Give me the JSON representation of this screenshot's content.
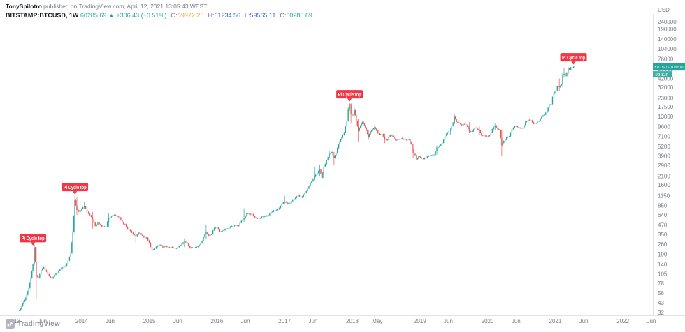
{
  "header": {
    "byline": {
      "author": "TonySpilotro",
      "rest": " published on TradingView.com, April 12, 2021 13:05:43 WEST"
    },
    "symbol": {
      "name": "BITSTAMP:BTCUSD, 1W",
      "last": "60285.69",
      "change": "▲ +306.43 (+0.51%)",
      "o_label": "O:",
      "o": "59972.26",
      "h_label": "H:",
      "h": "61234.56",
      "l_label": "L:",
      "l": "59565.11",
      "c_label": "C:",
      "c": "60285.69"
    }
  },
  "price_axis": {
    "currency": "USD",
    "ticks": [
      "240000",
      "190000",
      "140000",
      "104000",
      "76000",
      "56000",
      "42000",
      "32000",
      "23000",
      "17500",
      "13000",
      "9600",
      "7100",
      "5200",
      "3900",
      "2900",
      "2100",
      "1600",
      "1150",
      "850",
      "640",
      "470",
      "350",
      "260",
      "190",
      "140",
      "105",
      "78",
      "58",
      "43",
      "32"
    ],
    "price_tag": {
      "label": "BTCUSD S·",
      "value": "60285.69"
    },
    "countdown": "9d 12h"
  },
  "time_axis": {
    "ticks": [
      {
        "t": 2013,
        "label": "2013"
      },
      {
        "t": 2013.42,
        "label": "Jun"
      },
      {
        "t": 2014,
        "label": "2014"
      },
      {
        "t": 2014.42,
        "label": "Jun"
      },
      {
        "t": 2015,
        "label": "2015"
      },
      {
        "t": 2015.42,
        "label": "Jun"
      },
      {
        "t": 2016,
        "label": "2016"
      },
      {
        "t": 2016.42,
        "label": "Jun"
      },
      {
        "t": 2017,
        "label": "2017"
      },
      {
        "t": 2017.42,
        "label": "Jun"
      },
      {
        "t": 2018,
        "label": "2018"
      },
      {
        "t": 2018.37,
        "label": "May"
      },
      {
        "t": 2019,
        "label": "2019"
      },
      {
        "t": 2019.42,
        "label": "Jun"
      },
      {
        "t": 2020,
        "label": "2020"
      },
      {
        "t": 2020.42,
        "label": "Jun"
      },
      {
        "t": 2021,
        "label": "2021"
      },
      {
        "t": 2021.42,
        "label": "Jun"
      },
      {
        "t": 2022,
        "label": "2022"
      },
      {
        "t": 2022.42,
        "label": "Jun"
      }
    ]
  },
  "watermark": {
    "text": "TradingView"
  },
  "colors": {
    "up": "#26a69a",
    "down": "#ef5350",
    "marker": "#f23645",
    "tag_bg": "#26a69a",
    "axis_text": "#787b86",
    "axis_line": "#e0e3eb",
    "header_text": "#131722",
    "open_value": "#f7a23b",
    "high_low_value": "#2962ff",
    "close_value": "#26a69a"
  },
  "chart_data": {
    "type": "candlestick",
    "title": "BITSTAMP:BTCUSD, 1W (logarithmic scale)",
    "scale": "logarithmic",
    "x_unit": "decimal_year",
    "xlim": [
      2013,
      2022.45
    ],
    "ylim": [
      32,
      240000
    ],
    "legend": "none",
    "grid": false,
    "anchor_format": [
      "t",
      "close",
      "high(optional)",
      "low(optional)"
    ],
    "anchors": [
      [
        2013.06,
        33
      ],
      [
        2013.1,
        36
      ],
      [
        2013.13,
        42
      ],
      [
        2013.16,
        47
      ],
      [
        2013.19,
        55
      ],
      [
        2013.22,
        68
      ],
      [
        2013.25,
        92,
        96,
        60
      ],
      [
        2013.28,
        142
      ],
      [
        2013.3,
        237,
        266,
        135
      ],
      [
        2013.33,
        100,
        240,
        50
      ],
      [
        2013.36,
        92
      ],
      [
        2013.4,
        118,
        140,
        80
      ],
      [
        2013.44,
        128
      ],
      [
        2013.48,
        112
      ],
      [
        2013.52,
        98
      ],
      [
        2013.56,
        91
      ],
      [
        2013.6,
        102
      ],
      [
        2013.64,
        108
      ],
      [
        2013.68,
        121
      ],
      [
        2013.72,
        127
      ],
      [
        2013.76,
        133
      ],
      [
        2013.8,
        158
      ],
      [
        2013.84,
        198
      ],
      [
        2013.87,
        380,
        420,
        195
      ],
      [
        2013.9,
        1005,
        1150,
        360
      ],
      [
        2013.93,
        745,
        1100,
        640
      ],
      [
        2013.96,
        705
      ],
      [
        2014.0,
        772
      ],
      [
        2014.04,
        828,
        950,
        765
      ],
      [
        2014.08,
        700
      ],
      [
        2014.12,
        632
      ],
      [
        2014.16,
        565,
        700,
        420
      ],
      [
        2014.2,
        455
      ],
      [
        2014.24,
        505
      ],
      [
        2014.28,
        465
      ],
      [
        2014.32,
        445
      ],
      [
        2014.36,
        450
      ],
      [
        2014.4,
        585,
        680,
        438
      ],
      [
        2014.44,
        605
      ],
      [
        2014.48,
        640
      ],
      [
        2014.52,
        618
      ],
      [
        2014.56,
        592
      ],
      [
        2014.6,
        505
      ],
      [
        2014.64,
        482
      ],
      [
        2014.68,
        412
      ],
      [
        2014.72,
        392
      ],
      [
        2014.76,
        352
      ],
      [
        2014.8,
        328,
        392,
        272
      ],
      [
        2014.84,
        372
      ],
      [
        2014.88,
        348
      ],
      [
        2014.92,
        322
      ],
      [
        2014.96,
        318
      ],
      [
        2015.0,
        272
      ],
      [
        2015.04,
        218,
        298,
        152
      ],
      [
        2015.08,
        228
      ],
      [
        2015.12,
        248
      ],
      [
        2015.16,
        255
      ],
      [
        2015.2,
        236
      ],
      [
        2015.24,
        247
      ],
      [
        2015.28,
        234
      ],
      [
        2015.32,
        240
      ],
      [
        2015.36,
        234
      ],
      [
        2015.4,
        229
      ],
      [
        2015.44,
        248
      ],
      [
        2015.48,
        262
      ],
      [
        2015.52,
        281,
        312,
        238
      ],
      [
        2015.56,
        264
      ],
      [
        2015.6,
        231
      ],
      [
        2015.64,
        234
      ],
      [
        2015.68,
        237
      ],
      [
        2015.72,
        246
      ],
      [
        2015.76,
        268
      ],
      [
        2015.8,
        322
      ],
      [
        2015.84,
        378,
        465,
        305
      ],
      [
        2015.88,
        333
      ],
      [
        2015.92,
        356
      ],
      [
        2015.96,
        428
      ],
      [
        2016.0,
        434,
        470,
        410
      ],
      [
        2016.04,
        382
      ],
      [
        2016.08,
        396
      ],
      [
        2016.12,
        416
      ],
      [
        2016.16,
        421
      ],
      [
        2016.2,
        448
      ],
      [
        2016.24,
        454
      ],
      [
        2016.28,
        459
      ],
      [
        2016.32,
        456
      ],
      [
        2016.36,
        532
      ],
      [
        2016.4,
        578,
        780,
        518
      ],
      [
        2016.44,
        668
      ],
      [
        2016.48,
        658
      ],
      [
        2016.52,
        655
      ],
      [
        2016.56,
        586
      ],
      [
        2016.6,
        574
      ],
      [
        2016.64,
        578
      ],
      [
        2016.68,
        606
      ],
      [
        2016.72,
        612
      ],
      [
        2016.76,
        634
      ],
      [
        2016.8,
        700
      ],
      [
        2016.84,
        732
      ],
      [
        2016.88,
        744
      ],
      [
        2016.92,
        792
      ],
      [
        2016.96,
        905
      ],
      [
        2017.0,
        962,
        1148,
        888
      ],
      [
        2017.04,
        892
      ],
      [
        2017.08,
        922
      ],
      [
        2017.12,
        1002
      ],
      [
        2017.16,
        1082
      ],
      [
        2017.2,
        1178
      ],
      [
        2017.24,
        1085,
        1340,
        935
      ],
      [
        2017.28,
        1192
      ],
      [
        2017.32,
        1325
      ],
      [
        2017.36,
        1562
      ],
      [
        2017.4,
        1785
      ],
      [
        2017.44,
        2060,
        2760,
        1815
      ],
      [
        2017.48,
        2320
      ],
      [
        2017.52,
        2550,
        2980,
        2120
      ],
      [
        2017.55,
        1995,
        2620,
        1760
      ],
      [
        2017.58,
        2820
      ],
      [
        2017.62,
        3420
      ],
      [
        2017.66,
        4120,
        4480,
        3620
      ],
      [
        2017.7,
        4390
      ],
      [
        2017.73,
        3650,
        4425,
        2975
      ],
      [
        2017.76,
        4310
      ],
      [
        2017.8,
        5620
      ],
      [
        2017.83,
        6450
      ],
      [
        2017.86,
        7400
      ],
      [
        2017.88,
        8050
      ],
      [
        2017.9,
        9650
      ],
      [
        2017.92,
        11450
      ],
      [
        2017.94,
        16600,
        17320,
        11160
      ],
      [
        2017.96,
        19150,
        19800,
        15460
      ],
      [
        2017.98,
        14100,
        19500,
        10830
      ],
      [
        2018.01,
        13600
      ],
      [
        2018.03,
        16100,
        17230,
        12780
      ],
      [
        2018.06,
        11400
      ],
      [
        2018.09,
        8400,
        12200,
        5920
      ],
      [
        2018.12,
        9900
      ],
      [
        2018.15,
        11050
      ],
      [
        2018.18,
        9950
      ],
      [
        2018.21,
        8550
      ],
      [
        2018.24,
        6950,
        8620,
        6430
      ],
      [
        2018.27,
        8250
      ],
      [
        2018.3,
        8900
      ],
      [
        2018.33,
        9350,
        9990,
        8650
      ],
      [
        2018.36,
        8480
      ],
      [
        2018.4,
        7480
      ],
      [
        2018.44,
        7620
      ],
      [
        2018.48,
        6460,
        7690,
        5780
      ],
      [
        2018.52,
        6280
      ],
      [
        2018.56,
        7420
      ],
      [
        2018.6,
        7020
      ],
      [
        2018.64,
        6280
      ],
      [
        2018.68,
        6520
      ],
      [
        2018.72,
        6720
      ],
      [
        2018.76,
        6480
      ],
      [
        2018.8,
        6360
      ],
      [
        2018.84,
        6420
      ],
      [
        2018.87,
        5580
      ],
      [
        2018.9,
        4280,
        5650,
        3650
      ],
      [
        2018.93,
        4010
      ],
      [
        2018.95,
        3530
      ],
      [
        2018.98,
        3820
      ],
      [
        2019.01,
        3690
      ],
      [
        2019.05,
        3560
      ],
      [
        2019.09,
        3660
      ],
      [
        2019.13,
        3920
      ],
      [
        2019.17,
        3960
      ],
      [
        2019.21,
        4060
      ],
      [
        2019.25,
        5060,
        5350,
        4050
      ],
      [
        2019.29,
        5310
      ],
      [
        2019.33,
        5820
      ],
      [
        2019.37,
        7250,
        8360,
        5700
      ],
      [
        2019.41,
        7990
      ],
      [
        2019.45,
        8720,
        9100,
        7440
      ],
      [
        2019.49,
        10850
      ],
      [
        2019.51,
        12900,
        13880,
        10350
      ],
      [
        2019.54,
        11050
      ],
      [
        2019.58,
        10550
      ],
      [
        2019.62,
        9990
      ],
      [
        2019.66,
        10350
      ],
      [
        2019.7,
        9620
      ],
      [
        2019.73,
        8250,
        10960,
        7850
      ],
      [
        2019.77,
        8320
      ],
      [
        2019.81,
        9250
      ],
      [
        2019.85,
        8820
      ],
      [
        2019.88,
        8520,
        9600,
        7300
      ],
      [
        2019.91,
        7320
      ],
      [
        2019.95,
        7220
      ],
      [
        2019.99,
        7200
      ],
      [
        2020.03,
        7350
      ],
      [
        2020.07,
        8880
      ],
      [
        2020.11,
        9920,
        10500,
        8520
      ],
      [
        2020.15,
        8900
      ],
      [
        2020.18,
        8600
      ],
      [
        2020.21,
        5350,
        8620,
        3850
      ],
      [
        2020.24,
        6190
      ],
      [
        2020.28,
        6830
      ],
      [
        2020.32,
        7120
      ],
      [
        2020.36,
        8790,
        10070,
        6790
      ],
      [
        2020.4,
        9670
      ],
      [
        2020.44,
        9440
      ],
      [
        2020.48,
        9130
      ],
      [
        2020.52,
        9180
      ],
      [
        2020.56,
        11090
      ],
      [
        2020.6,
        11810,
        12130,
        10550
      ],
      [
        2020.64,
        11590
      ],
      [
        2020.68,
        10430
      ],
      [
        2020.72,
        10690
      ],
      [
        2020.76,
        11370
      ],
      [
        2020.8,
        13030
      ],
      [
        2020.84,
        13790
      ],
      [
        2020.88,
        15520
      ],
      [
        2020.91,
        18680,
        19500,
        15850
      ],
      [
        2020.94,
        19160,
        19920,
        16250
      ],
      [
        2020.96,
        23830
      ],
      [
        2020.98,
        26470
      ],
      [
        2021.01,
        29030,
        34800,
        25850
      ],
      [
        2021.03,
        33100
      ],
      [
        2021.06,
        32100,
        42000,
        28850
      ],
      [
        2021.09,
        35500
      ],
      [
        2021.11,
        46400,
        49710,
        32330
      ],
      [
        2021.13,
        48600,
        58350,
        43020
      ],
      [
        2021.15,
        45200
      ],
      [
        2021.17,
        50300
      ],
      [
        2021.19,
        57400,
        61800,
        44970
      ],
      [
        2021.21,
        54900
      ],
      [
        2021.23,
        58900
      ],
      [
        2021.25,
        58100,
        61280,
        50430
      ],
      [
        2021.27,
        59970
      ],
      [
        2021.285,
        60285.69,
        61234.56,
        59565.11
      ]
    ],
    "markers": [
      {
        "t": 2013.28,
        "price": 240,
        "label": "Pi Cycle top"
      },
      {
        "t": 2013.9,
        "price": 1150,
        "label": "Pi Cycle top"
      },
      {
        "t": 2017.96,
        "price": 19800,
        "label": "Pi Cycle top"
      },
      {
        "t": 2021.27,
        "price": 61500,
        "label": "Pi Cycle top"
      }
    ]
  }
}
